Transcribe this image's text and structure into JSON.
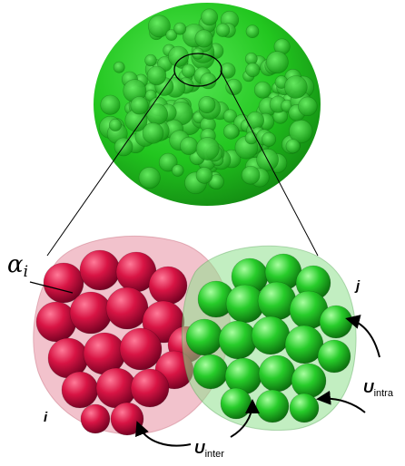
{
  "labels": {
    "alpha_symbol": "α",
    "alpha_subscript": "i",
    "cluster_i": "i",
    "cluster_j": "j",
    "u_intra_main": "U",
    "u_intra_sub": "intra",
    "u_inter_main": "U",
    "u_inter_sub": "inter"
  },
  "colors": {
    "macro_green": "#22c61f",
    "bead_red": "#d81444",
    "bead_green": "#27cc2a",
    "shell_red": "#e88fa3",
    "shell_green": "#90e08e",
    "lines": "#000000"
  },
  "icons": {
    "zoom_indicator": "ellipse-zoom-icon",
    "arrows": "curved-arrow-icon"
  }
}
